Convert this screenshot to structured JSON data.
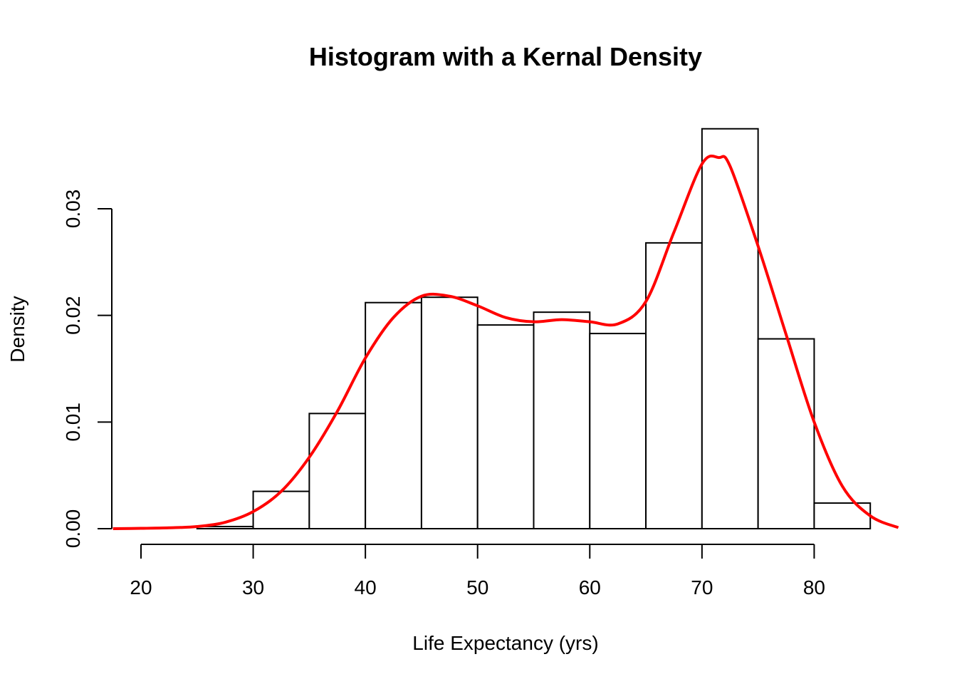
{
  "chart_data": {
    "type": "bar",
    "title": "Histogram with a Kernal Density",
    "xlabel": "Life Expectancy (yrs)",
    "ylabel": "Density",
    "xlim": [
      17.5,
      87.5
    ],
    "ylim": [
      0,
      0.038
    ],
    "x_ticks": [
      20,
      30,
      40,
      50,
      60,
      70,
      80
    ],
    "y_ticks": [
      0.0,
      0.01,
      0.02,
      0.03
    ],
    "y_tick_labels": [
      "0.00",
      "0.01",
      "0.02",
      "0.03"
    ],
    "grid": false,
    "bins": [
      {
        "start": 25,
        "end": 30,
        "density": 0.0002
      },
      {
        "start": 30,
        "end": 35,
        "density": 0.0035
      },
      {
        "start": 35,
        "end": 40,
        "density": 0.0108
      },
      {
        "start": 40,
        "end": 45,
        "density": 0.0212
      },
      {
        "start": 45,
        "end": 50,
        "density": 0.0217
      },
      {
        "start": 50,
        "end": 55,
        "density": 0.0191
      },
      {
        "start": 55,
        "end": 60,
        "density": 0.0203
      },
      {
        "start": 60,
        "end": 65,
        "density": 0.0183
      },
      {
        "start": 65,
        "end": 70,
        "density": 0.0268
      },
      {
        "start": 70,
        "end": 75,
        "density": 0.0375
      },
      {
        "start": 75,
        "end": 80,
        "density": 0.0178
      },
      {
        "start": 80,
        "end": 85,
        "density": 0.0024
      }
    ],
    "density_curve": {
      "color": "#ff0000",
      "x": [
        17.5,
        20,
        22.5,
        25,
        27.5,
        30,
        32.5,
        35,
        37.5,
        40,
        42.5,
        45,
        47.5,
        50,
        52.5,
        55,
        57.5,
        60,
        62.5,
        65,
        67.5,
        70,
        71.5,
        72.5,
        75,
        77.5,
        80,
        82.5,
        85,
        87.5
      ],
      "y": [
        0.0,
        3e-05,
        8e-05,
        0.0002,
        0.0006,
        0.0016,
        0.0035,
        0.0067,
        0.011,
        0.016,
        0.0198,
        0.0218,
        0.0218,
        0.0209,
        0.0198,
        0.0194,
        0.0196,
        0.0194,
        0.0192,
        0.0213,
        0.0278,
        0.0342,
        0.0348,
        0.034,
        0.0265,
        0.0182,
        0.01,
        0.004,
        0.0012,
        0.0001
      ]
    }
  }
}
